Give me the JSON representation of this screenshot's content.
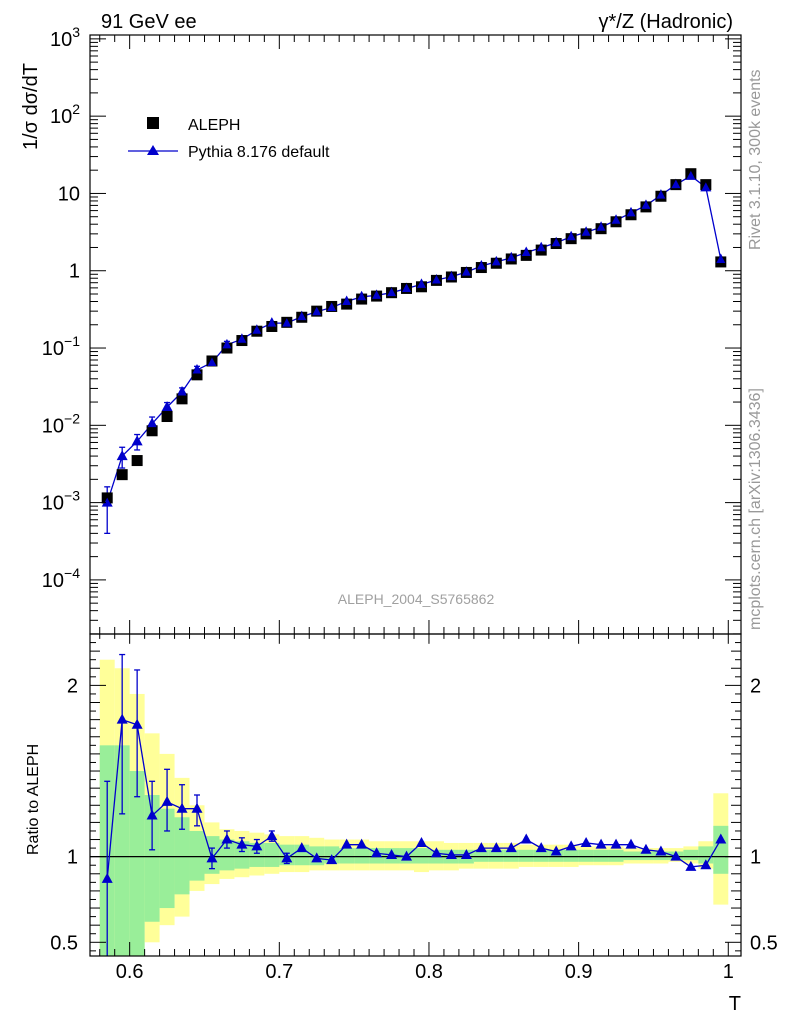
{
  "chart_data": {
    "type": "scatter",
    "header": {
      "left": "91 GeV ee",
      "right_main": "γ*/Z (Hadronic)"
    },
    "side_text": {
      "rivet": "Rivet 3.1.10,  300k events",
      "mcplots": "mcplots.cern.ch [arXiv:1306.3436]"
    },
    "watermark": "ALEPH_2004_S5765862",
    "xlabel": "T",
    "ylabel_main": "1/σ  dσ/dT",
    "ylabel_ratio": "Ratio to ALEPH",
    "xlim": [
      0.5735,
      1.0085
    ],
    "ylim_main_log10": [
      -4.7,
      3.05
    ],
    "ylim_ratio": [
      0.42,
      2.3
    ],
    "x_ticks": [
      "0.6",
      "0.7",
      "0.8",
      "0.9",
      "1"
    ],
    "y_ticks_main": [
      {
        "label": "10",
        "exp": "3",
        "value": 1000
      },
      {
        "label": "10",
        "exp": "2",
        "value": 100
      },
      {
        "label": "10",
        "exp": "",
        "value": 10
      },
      {
        "label": "1",
        "exp": "",
        "value": 1
      },
      {
        "label": "10",
        "exp": "−1",
        "value": 0.1
      },
      {
        "label": "10",
        "exp": "−2",
        "value": 0.01
      },
      {
        "label": "10",
        "exp": "−3",
        "value": 0.001
      },
      {
        "label": "10",
        "exp": "−4",
        "value": 0.0001
      }
    ],
    "y_ticks_ratio": [
      {
        "label": "0.5",
        "value": 0.5
      },
      {
        "label": "1",
        "value": 1
      },
      {
        "label": "2",
        "value": 2
      }
    ],
    "legend": [
      {
        "name": "ALEPH",
        "marker": "square",
        "color": "#000000"
      },
      {
        "name": "Pythia 8.176 default",
        "marker": "triangle",
        "color": "#0000cc"
      }
    ],
    "x": [
      0.585,
      0.595,
      0.605,
      0.615,
      0.625,
      0.635,
      0.645,
      0.655,
      0.665,
      0.675,
      0.685,
      0.695,
      0.705,
      0.715,
      0.725,
      0.735,
      0.745,
      0.755,
      0.765,
      0.775,
      0.785,
      0.795,
      0.805,
      0.815,
      0.825,
      0.835,
      0.845,
      0.855,
      0.865,
      0.875,
      0.885,
      0.895,
      0.905,
      0.915,
      0.925,
      0.935,
      0.945,
      0.955,
      0.965,
      0.975,
      0.985,
      0.995
    ],
    "series": [
      {
        "name": "ALEPH",
        "values": [
          0.00115,
          0.0023,
          0.0035,
          0.0085,
          0.013,
          0.022,
          0.045,
          0.068,
          0.1,
          0.125,
          0.165,
          0.19,
          0.215,
          0.25,
          0.3,
          0.345,
          0.37,
          0.43,
          0.47,
          0.52,
          0.59,
          0.62,
          0.75,
          0.83,
          0.95,
          1.1,
          1.25,
          1.42,
          1.58,
          1.85,
          2.25,
          2.6,
          3.0,
          3.5,
          4.3,
          5.3,
          6.7,
          9.2,
          13.0,
          18.0,
          13.0,
          1.3
        ],
        "band_inner": [
          [
            0.0,
            1.65
          ],
          [
            0.0,
            1.65
          ],
          [
            0.42,
            1.5
          ],
          [
            0.62,
            1.36
          ],
          [
            0.7,
            1.28
          ],
          [
            0.78,
            1.23
          ],
          [
            0.86,
            1.15
          ],
          [
            0.9,
            1.12
          ],
          [
            0.92,
            1.1
          ],
          [
            0.93,
            1.09
          ],
          [
            0.94,
            1.08
          ],
          [
            0.94,
            1.08
          ],
          [
            0.95,
            1.07
          ],
          [
            0.95,
            1.07
          ],
          [
            0.95,
            1.06
          ],
          [
            0.96,
            1.06
          ],
          [
            0.96,
            1.05
          ],
          [
            0.96,
            1.05
          ],
          [
            0.96,
            1.05
          ],
          [
            0.96,
            1.05
          ],
          [
            0.96,
            1.05
          ],
          [
            0.96,
            1.05
          ],
          [
            0.96,
            1.04
          ],
          [
            0.96,
            1.04
          ],
          [
            0.96,
            1.04
          ],
          [
            0.97,
            1.04
          ],
          [
            0.97,
            1.04
          ],
          [
            0.97,
            1.04
          ],
          [
            0.97,
            1.04
          ],
          [
            0.97,
            1.04
          ],
          [
            0.97,
            1.04
          ],
          [
            0.97,
            1.04
          ],
          [
            0.97,
            1.04
          ],
          [
            0.97,
            1.04
          ],
          [
            0.97,
            1.04
          ],
          [
            0.98,
            1.03
          ],
          [
            0.98,
            1.03
          ],
          [
            0.98,
            1.03
          ],
          [
            0.98,
            1.03
          ],
          [
            0.98,
            1.04
          ],
          [
            0.96,
            1.06
          ],
          [
            0.9,
            1.18
          ]
        ],
        "band_outer": [
          [
            0.0,
            2.15
          ],
          [
            0.0,
            2.1
          ],
          [
            0.0,
            1.95
          ],
          [
            0.5,
            1.72
          ],
          [
            0.6,
            1.6
          ],
          [
            0.65,
            1.46
          ],
          [
            0.8,
            1.3
          ],
          [
            0.84,
            1.2
          ],
          [
            0.87,
            1.16
          ],
          [
            0.88,
            1.15
          ],
          [
            0.89,
            1.14
          ],
          [
            0.9,
            1.13
          ],
          [
            0.91,
            1.12
          ],
          [
            0.91,
            1.12
          ],
          [
            0.92,
            1.11
          ],
          [
            0.92,
            1.1
          ],
          [
            0.92,
            1.1
          ],
          [
            0.92,
            1.1
          ],
          [
            0.92,
            1.09
          ],
          [
            0.92,
            1.09
          ],
          [
            0.92,
            1.09
          ],
          [
            0.91,
            1.09
          ],
          [
            0.92,
            1.09
          ],
          [
            0.92,
            1.08
          ],
          [
            0.93,
            1.08
          ],
          [
            0.93,
            1.08
          ],
          [
            0.93,
            1.08
          ],
          [
            0.93,
            1.08
          ],
          [
            0.94,
            1.07
          ],
          [
            0.94,
            1.07
          ],
          [
            0.94,
            1.07
          ],
          [
            0.94,
            1.07
          ],
          [
            0.95,
            1.06
          ],
          [
            0.95,
            1.06
          ],
          [
            0.95,
            1.06
          ],
          [
            0.96,
            1.05
          ],
          [
            0.96,
            1.05
          ],
          [
            0.96,
            1.05
          ],
          [
            0.97,
            1.05
          ],
          [
            0.96,
            1.06
          ],
          [
            0.93,
            1.09
          ],
          [
            0.72,
            1.37
          ]
        ]
      },
      {
        "name": "Pythia 8.176 default",
        "values": [
          0.001,
          0.004,
          0.0062,
          0.0105,
          0.0172,
          0.027,
          0.052,
          0.065,
          0.11,
          0.13,
          0.17,
          0.21,
          0.21,
          0.255,
          0.295,
          0.335,
          0.4,
          0.46,
          0.48,
          0.52,
          0.59,
          0.665,
          0.76,
          0.84,
          0.96,
          1.15,
          1.3,
          1.47,
          1.72,
          1.98,
          2.3,
          2.75,
          3.15,
          3.65,
          4.5,
          5.6,
          7.0,
          9.5,
          13.0,
          16.9,
          12.0,
          1.4
        ],
        "errors": [
          0.0006,
          0.0012,
          0.0014,
          0.0023,
          0.0025,
          0.0035,
          0.006,
          0.004,
          0.012,
          0.008,
          0.009,
          0.012,
          0.011,
          0.009,
          0.01,
          0.01,
          0.012,
          0.014,
          0.014,
          0.014,
          0.016,
          0.018,
          0.02,
          0.022,
          0.024,
          0.028,
          0.03,
          0.034,
          0.04,
          0.044,
          0.05,
          0.056,
          0.062,
          0.07,
          0.08,
          0.09,
          0.11,
          0.14,
          0.18,
          0.22,
          0.18,
          0.04
        ],
        "ratio": [
          0.87,
          1.8,
          1.77,
          1.24,
          1.32,
          1.28,
          1.28,
          0.99,
          1.1,
          1.07,
          1.06,
          1.12,
          0.99,
          1.05,
          0.99,
          0.98,
          1.07,
          1.07,
          1.02,
          1.01,
          1.0,
          1.08,
          1.02,
          1.01,
          1.01,
          1.05,
          1.05,
          1.05,
          1.1,
          1.05,
          1.03,
          1.06,
          1.08,
          1.07,
          1.07,
          1.07,
          1.04,
          1.03,
          1.0,
          0.94,
          0.95,
          1.1
        ],
        "ratio_err_low": [
          0.52,
          0.55,
          0.42,
          0.2,
          0.17,
          0.12,
          0.1,
          0.06,
          0.05,
          0.04,
          0.04,
          0.03,
          0.03,
          0.02,
          0.02,
          0.02,
          0.02,
          0.02,
          0.02,
          0.02,
          0.02,
          0.02,
          0.02,
          0.02,
          0.02,
          0.02,
          0.02,
          0.02,
          0.02,
          0.02,
          0.02,
          0.02,
          0.02,
          0.02,
          0.02,
          0.02,
          0.01,
          0.01,
          0.01,
          0.01,
          0.01,
          0.01
        ],
        "ratio_err_high": [
          0.57,
          0.38,
          0.32,
          0.2,
          0.19,
          0.14,
          0.08,
          0.06,
          0.05,
          0.04,
          0.04,
          0.03,
          0.03,
          0.02,
          0.02,
          0.02,
          0.02,
          0.02,
          0.02,
          0.02,
          0.02,
          0.02,
          0.02,
          0.02,
          0.02,
          0.02,
          0.02,
          0.02,
          0.02,
          0.02,
          0.02,
          0.02,
          0.02,
          0.02,
          0.02,
          0.02,
          0.01,
          0.01,
          0.01,
          0.01,
          0.01,
          0.01
        ]
      }
    ]
  }
}
